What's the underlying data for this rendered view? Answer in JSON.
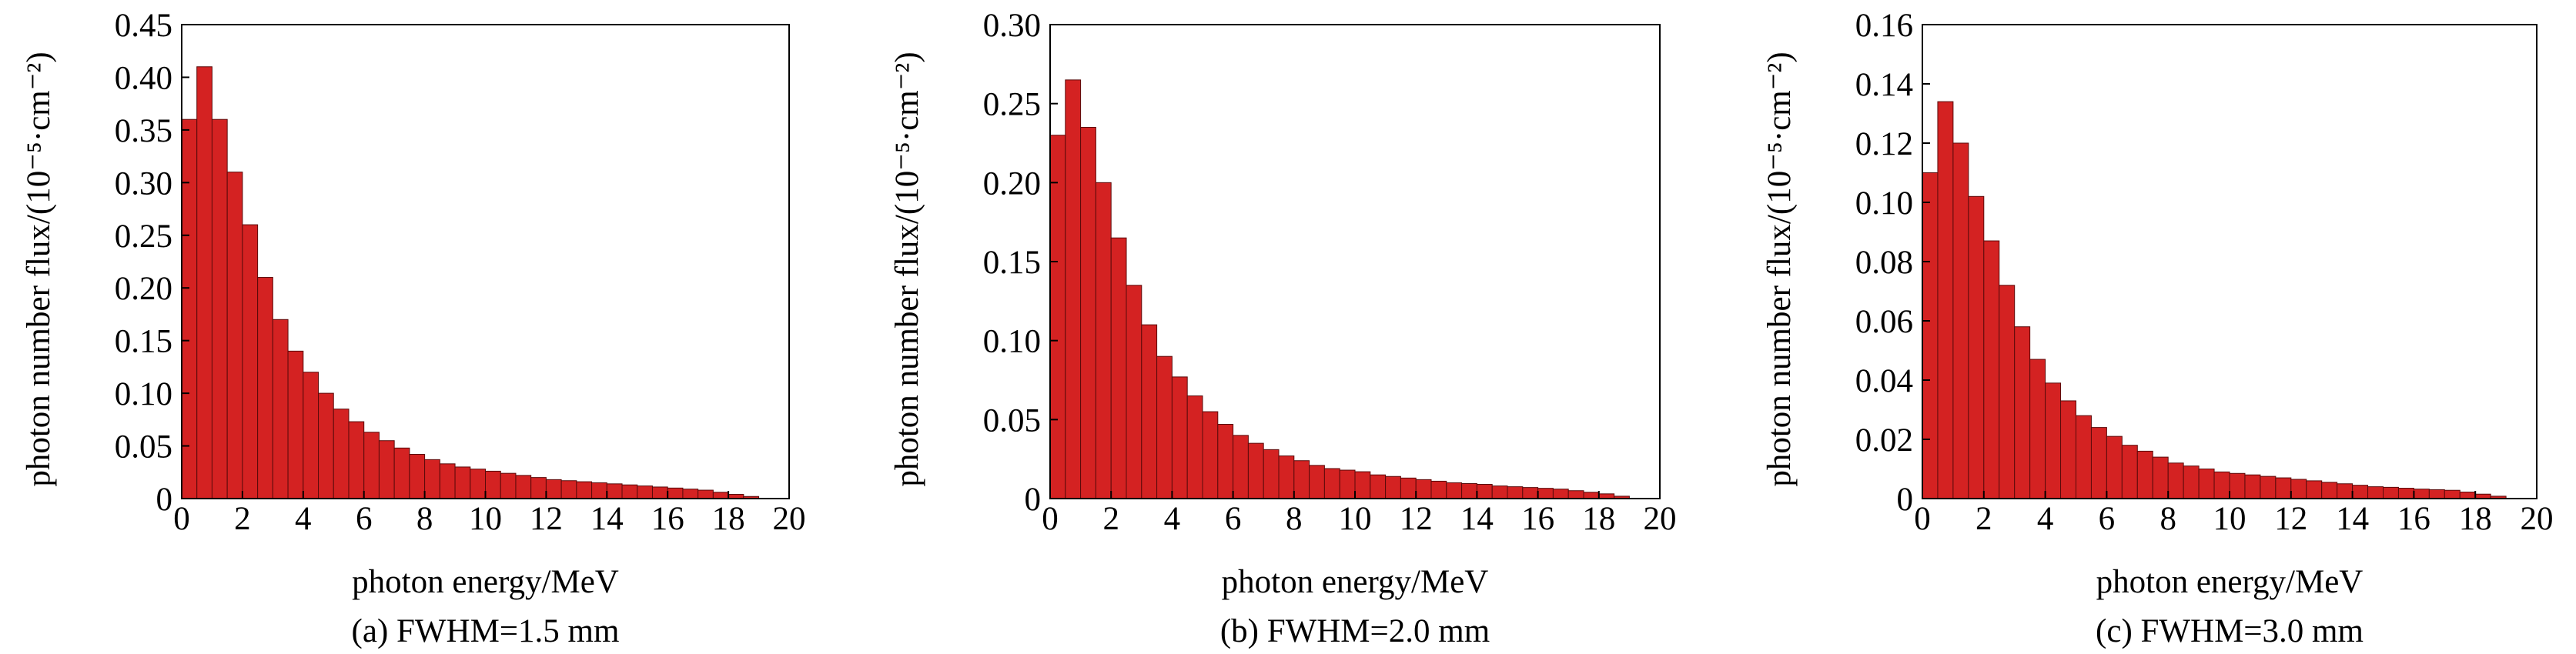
{
  "chart_data": [
    {
      "type": "histogram",
      "caption": "(a) FWHM=1.5 mm",
      "x_label": "photon energy/MeV",
      "y_label": "photon number flux/(10⁻⁵·cm⁻²)",
      "color": "#d42222",
      "bins": [
        0,
        0.5,
        1,
        1.5,
        2,
        2.5,
        3,
        3.5,
        4,
        4.5,
        5,
        5.5,
        6,
        6.5,
        7,
        7.5,
        8,
        8.5,
        9,
        9.5,
        10,
        10.5,
        11,
        11.5,
        12,
        12.5,
        13,
        13.5,
        14,
        14.5,
        15,
        15.5,
        16,
        16.5,
        17,
        17.5,
        18,
        18.5,
        19
      ],
      "values": [
        0.36,
        0.41,
        0.36,
        0.31,
        0.26,
        0.21,
        0.17,
        0.14,
        0.12,
        0.1,
        0.085,
        0.073,
        0.063,
        0.055,
        0.048,
        0.042,
        0.037,
        0.033,
        0.03,
        0.028,
        0.026,
        0.024,
        0.022,
        0.02,
        0.018,
        0.017,
        0.016,
        0.015,
        0.014,
        0.013,
        0.012,
        0.011,
        0.01,
        0.009,
        0.008,
        0.006,
        0.004,
        0.002
      ],
      "xlim": [
        0,
        20
      ],
      "xticks": [
        0,
        2,
        4,
        6,
        8,
        10,
        12,
        14,
        16,
        18,
        20
      ],
      "ylim": [
        0,
        0.45
      ],
      "yticks": [
        0,
        0.05,
        {
          "value": 0.1,
          "label": "0.10"
        },
        0.15,
        {
          "value": 0.2,
          "label": "0.20"
        },
        0.25,
        {
          "value": 0.3,
          "label": "0.30"
        },
        0.35,
        {
          "value": 0.4,
          "label": "0.40"
        },
        0.45
      ]
    },
    {
      "type": "histogram",
      "caption": "(b) FWHM=2.0 mm",
      "x_label": "photon energy/MeV",
      "y_label": "photon number flux/(10⁻⁵·cm⁻²)",
      "color": "#d42222",
      "bins": [
        0,
        0.5,
        1,
        1.5,
        2,
        2.5,
        3,
        3.5,
        4,
        4.5,
        5,
        5.5,
        6,
        6.5,
        7,
        7.5,
        8,
        8.5,
        9,
        9.5,
        10,
        10.5,
        11,
        11.5,
        12,
        12.5,
        13,
        13.5,
        14,
        14.5,
        15,
        15.5,
        16,
        16.5,
        17,
        17.5,
        18,
        18.5,
        19
      ],
      "values": [
        0.23,
        0.265,
        0.235,
        0.2,
        0.165,
        0.135,
        0.11,
        0.09,
        0.077,
        0.065,
        0.055,
        0.047,
        0.04,
        0.035,
        0.031,
        0.027,
        0.024,
        0.021,
        0.019,
        0.018,
        0.017,
        0.015,
        0.014,
        0.013,
        0.012,
        0.011,
        0.01,
        0.0095,
        0.009,
        0.008,
        0.0075,
        0.007,
        0.0065,
        0.006,
        0.005,
        0.004,
        0.003,
        0.0015
      ],
      "xlim": [
        0,
        20
      ],
      "xticks": [
        0,
        2,
        4,
        6,
        8,
        10,
        12,
        14,
        16,
        18,
        20
      ],
      "ylim": [
        0,
        0.3
      ],
      "yticks": [
        0,
        0.05,
        {
          "value": 0.1,
          "label": "0.10"
        },
        0.15,
        {
          "value": 0.2,
          "label": "0.20"
        },
        0.25,
        {
          "value": 0.3,
          "label": "0.30"
        }
      ]
    },
    {
      "type": "histogram",
      "caption": "(c) FWHM=3.0 mm",
      "x_label": "photon energy/MeV",
      "y_label": "photon number flux/(10⁻⁵·cm⁻²)",
      "color": "#d42222",
      "bins": [
        0,
        0.5,
        1,
        1.5,
        2,
        2.5,
        3,
        3.5,
        4,
        4.5,
        5,
        5.5,
        6,
        6.5,
        7,
        7.5,
        8,
        8.5,
        9,
        9.5,
        10,
        10.5,
        11,
        11.5,
        12,
        12.5,
        13,
        13.5,
        14,
        14.5,
        15,
        15.5,
        16,
        16.5,
        17,
        17.5,
        18,
        18.5,
        19
      ],
      "values": [
        0.11,
        0.134,
        0.12,
        0.102,
        0.087,
        0.072,
        0.058,
        0.047,
        0.039,
        0.033,
        0.028,
        0.024,
        0.021,
        0.018,
        0.016,
        0.014,
        0.012,
        0.011,
        0.01,
        0.009,
        0.0085,
        0.008,
        0.0075,
        0.007,
        0.0065,
        0.006,
        0.0055,
        0.005,
        0.0045,
        0.004,
        0.0038,
        0.0035,
        0.0032,
        0.003,
        0.0028,
        0.0022,
        0.0015,
        0.0008
      ],
      "xlim": [
        0,
        20
      ],
      "xticks": [
        0,
        2,
        4,
        6,
        8,
        10,
        12,
        14,
        16,
        18,
        20
      ],
      "ylim": [
        0,
        0.16
      ],
      "yticks": [
        0,
        0.02,
        0.04,
        0.06,
        0.08,
        {
          "value": 0.1,
          "label": "0.10"
        },
        0.12,
        0.14,
        0.16
      ]
    }
  ]
}
